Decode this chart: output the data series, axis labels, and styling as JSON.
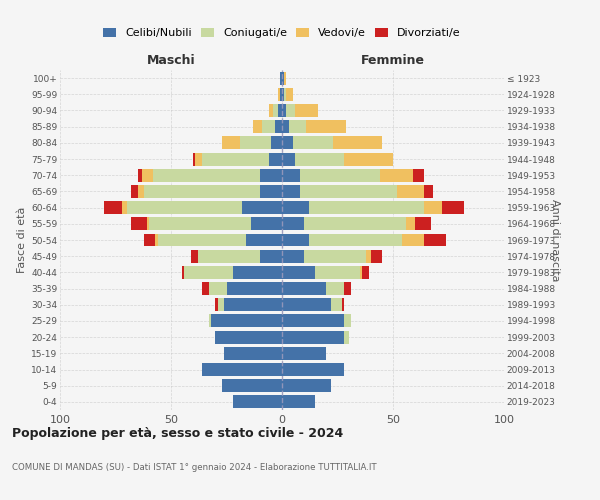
{
  "age_groups": [
    "0-4",
    "5-9",
    "10-14",
    "15-19",
    "20-24",
    "25-29",
    "30-34",
    "35-39",
    "40-44",
    "45-49",
    "50-54",
    "55-59",
    "60-64",
    "65-69",
    "70-74",
    "75-79",
    "80-84",
    "85-89",
    "90-94",
    "95-99",
    "100+"
  ],
  "birth_years": [
    "2019-2023",
    "2014-2018",
    "2009-2013",
    "2004-2008",
    "1999-2003",
    "1994-1998",
    "1989-1993",
    "1984-1988",
    "1979-1983",
    "1974-1978",
    "1969-1973",
    "1964-1968",
    "1959-1963",
    "1954-1958",
    "1949-1953",
    "1944-1948",
    "1939-1943",
    "1934-1938",
    "1929-1933",
    "1924-1928",
    "≤ 1923"
  ],
  "maschi": {
    "celibi": [
      22,
      27,
      36,
      26,
      30,
      32,
      26,
      25,
      22,
      10,
      16,
      14,
      18,
      10,
      10,
      6,
      5,
      3,
      2,
      1,
      1
    ],
    "coniugati": [
      0,
      0,
      0,
      0,
      0,
      1,
      3,
      8,
      22,
      28,
      40,
      46,
      52,
      52,
      48,
      30,
      14,
      6,
      2,
      0,
      0
    ],
    "vedovi": [
      0,
      0,
      0,
      0,
      0,
      0,
      0,
      0,
      0,
      0,
      1,
      1,
      2,
      3,
      5,
      3,
      8,
      4,
      2,
      1,
      0
    ],
    "divorziati": [
      0,
      0,
      0,
      0,
      0,
      0,
      1,
      3,
      1,
      3,
      5,
      7,
      8,
      3,
      2,
      1,
      0,
      0,
      0,
      0,
      0
    ]
  },
  "femmine": {
    "nubili": [
      15,
      22,
      28,
      20,
      28,
      28,
      22,
      20,
      15,
      10,
      12,
      10,
      12,
      8,
      8,
      6,
      5,
      3,
      2,
      1,
      1
    ],
    "coniugate": [
      0,
      0,
      0,
      0,
      2,
      3,
      5,
      8,
      20,
      28,
      42,
      46,
      52,
      44,
      36,
      22,
      18,
      8,
      4,
      1,
      0
    ],
    "vedove": [
      0,
      0,
      0,
      0,
      0,
      0,
      0,
      0,
      1,
      2,
      10,
      4,
      8,
      12,
      15,
      22,
      22,
      18,
      10,
      3,
      1
    ],
    "divorziate": [
      0,
      0,
      0,
      0,
      0,
      0,
      1,
      3,
      3,
      5,
      10,
      7,
      10,
      4,
      5,
      0,
      0,
      0,
      0,
      0,
      0
    ]
  },
  "colors": {
    "celibi": "#4472a8",
    "coniugati": "#c8d9a0",
    "vedovi": "#f0c060",
    "divorziati": "#cc2020"
  },
  "title": "Popolazione per età, sesso e stato civile - 2024",
  "subtitle": "COMUNE DI MANDAS (SU) - Dati ISTAT 1° gennaio 2024 - Elaborazione TUTTITALIA.IT",
  "ylabel_left": "Fasce di età",
  "ylabel_right": "Anni di nascita",
  "label_maschi": "Maschi",
  "label_femmine": "Femmine",
  "xlim": 100,
  "bg_color": "#f5f5f5",
  "grid_color": "#cccccc",
  "legend_labels": [
    "Celibi/Nubili",
    "Coniugati/e",
    "Vedovi/e",
    "Divorziati/e"
  ]
}
